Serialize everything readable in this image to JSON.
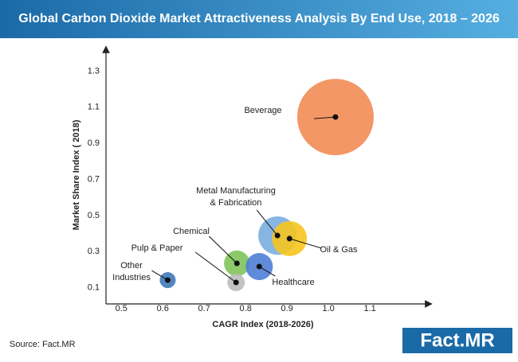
{
  "chart_data": {
    "type": "scatter",
    "title": "Global Carbon Dioxide Market Attractiveness Analysis By End Use, 2018 – 2026",
    "x_label": "CAGR Index (2018-2026)",
    "y_label": "Market Share Index ( 2018)",
    "source": "Source: Fact.MR",
    "logo": "Fact.MR",
    "xlim": [
      0.463,
      1.246
    ],
    "ylim": [
      0.01,
      1.43
    ],
    "xticks": [
      0.5,
      0.6,
      0.7,
      0.8,
      0.9,
      {
        "value": 1,
        "label": "1.0"
      },
      1.1
    ],
    "yticks": [
      0.1,
      0.3,
      0.5,
      0.7,
      0.9,
      1.1,
      1.3
    ],
    "points": [
      {
        "name": "Beverage",
        "color": "#f28c55",
        "x": 1.017,
        "y": 1.046,
        "size": 230
      },
      {
        "name": "Metal Manufacturing & Fabrication",
        "color": "#7aaee0",
        "x": 0.877,
        "y": 0.389,
        "size": 58
      },
      {
        "name": "Oil & Gas",
        "color": "#f7c51e",
        "x": 0.906,
        "y": 0.372,
        "size": 48
      },
      {
        "name": "Chemical",
        "color": "#7fc35a",
        "x": 0.779,
        "y": 0.235,
        "size": 26
      },
      {
        "name": "Healthcare",
        "color": "#4f7ed6",
        "x": 0.833,
        "y": 0.217,
        "size": 29
      },
      {
        "name": "Pulp & Paper",
        "color": "#bdbdbd",
        "x": 0.777,
        "y": 0.129,
        "size": 12
      },
      {
        "name": "Other Industries",
        "color": "#3e79b8",
        "x": 0.612,
        "y": 0.142,
        "size": 10
      }
    ]
  }
}
